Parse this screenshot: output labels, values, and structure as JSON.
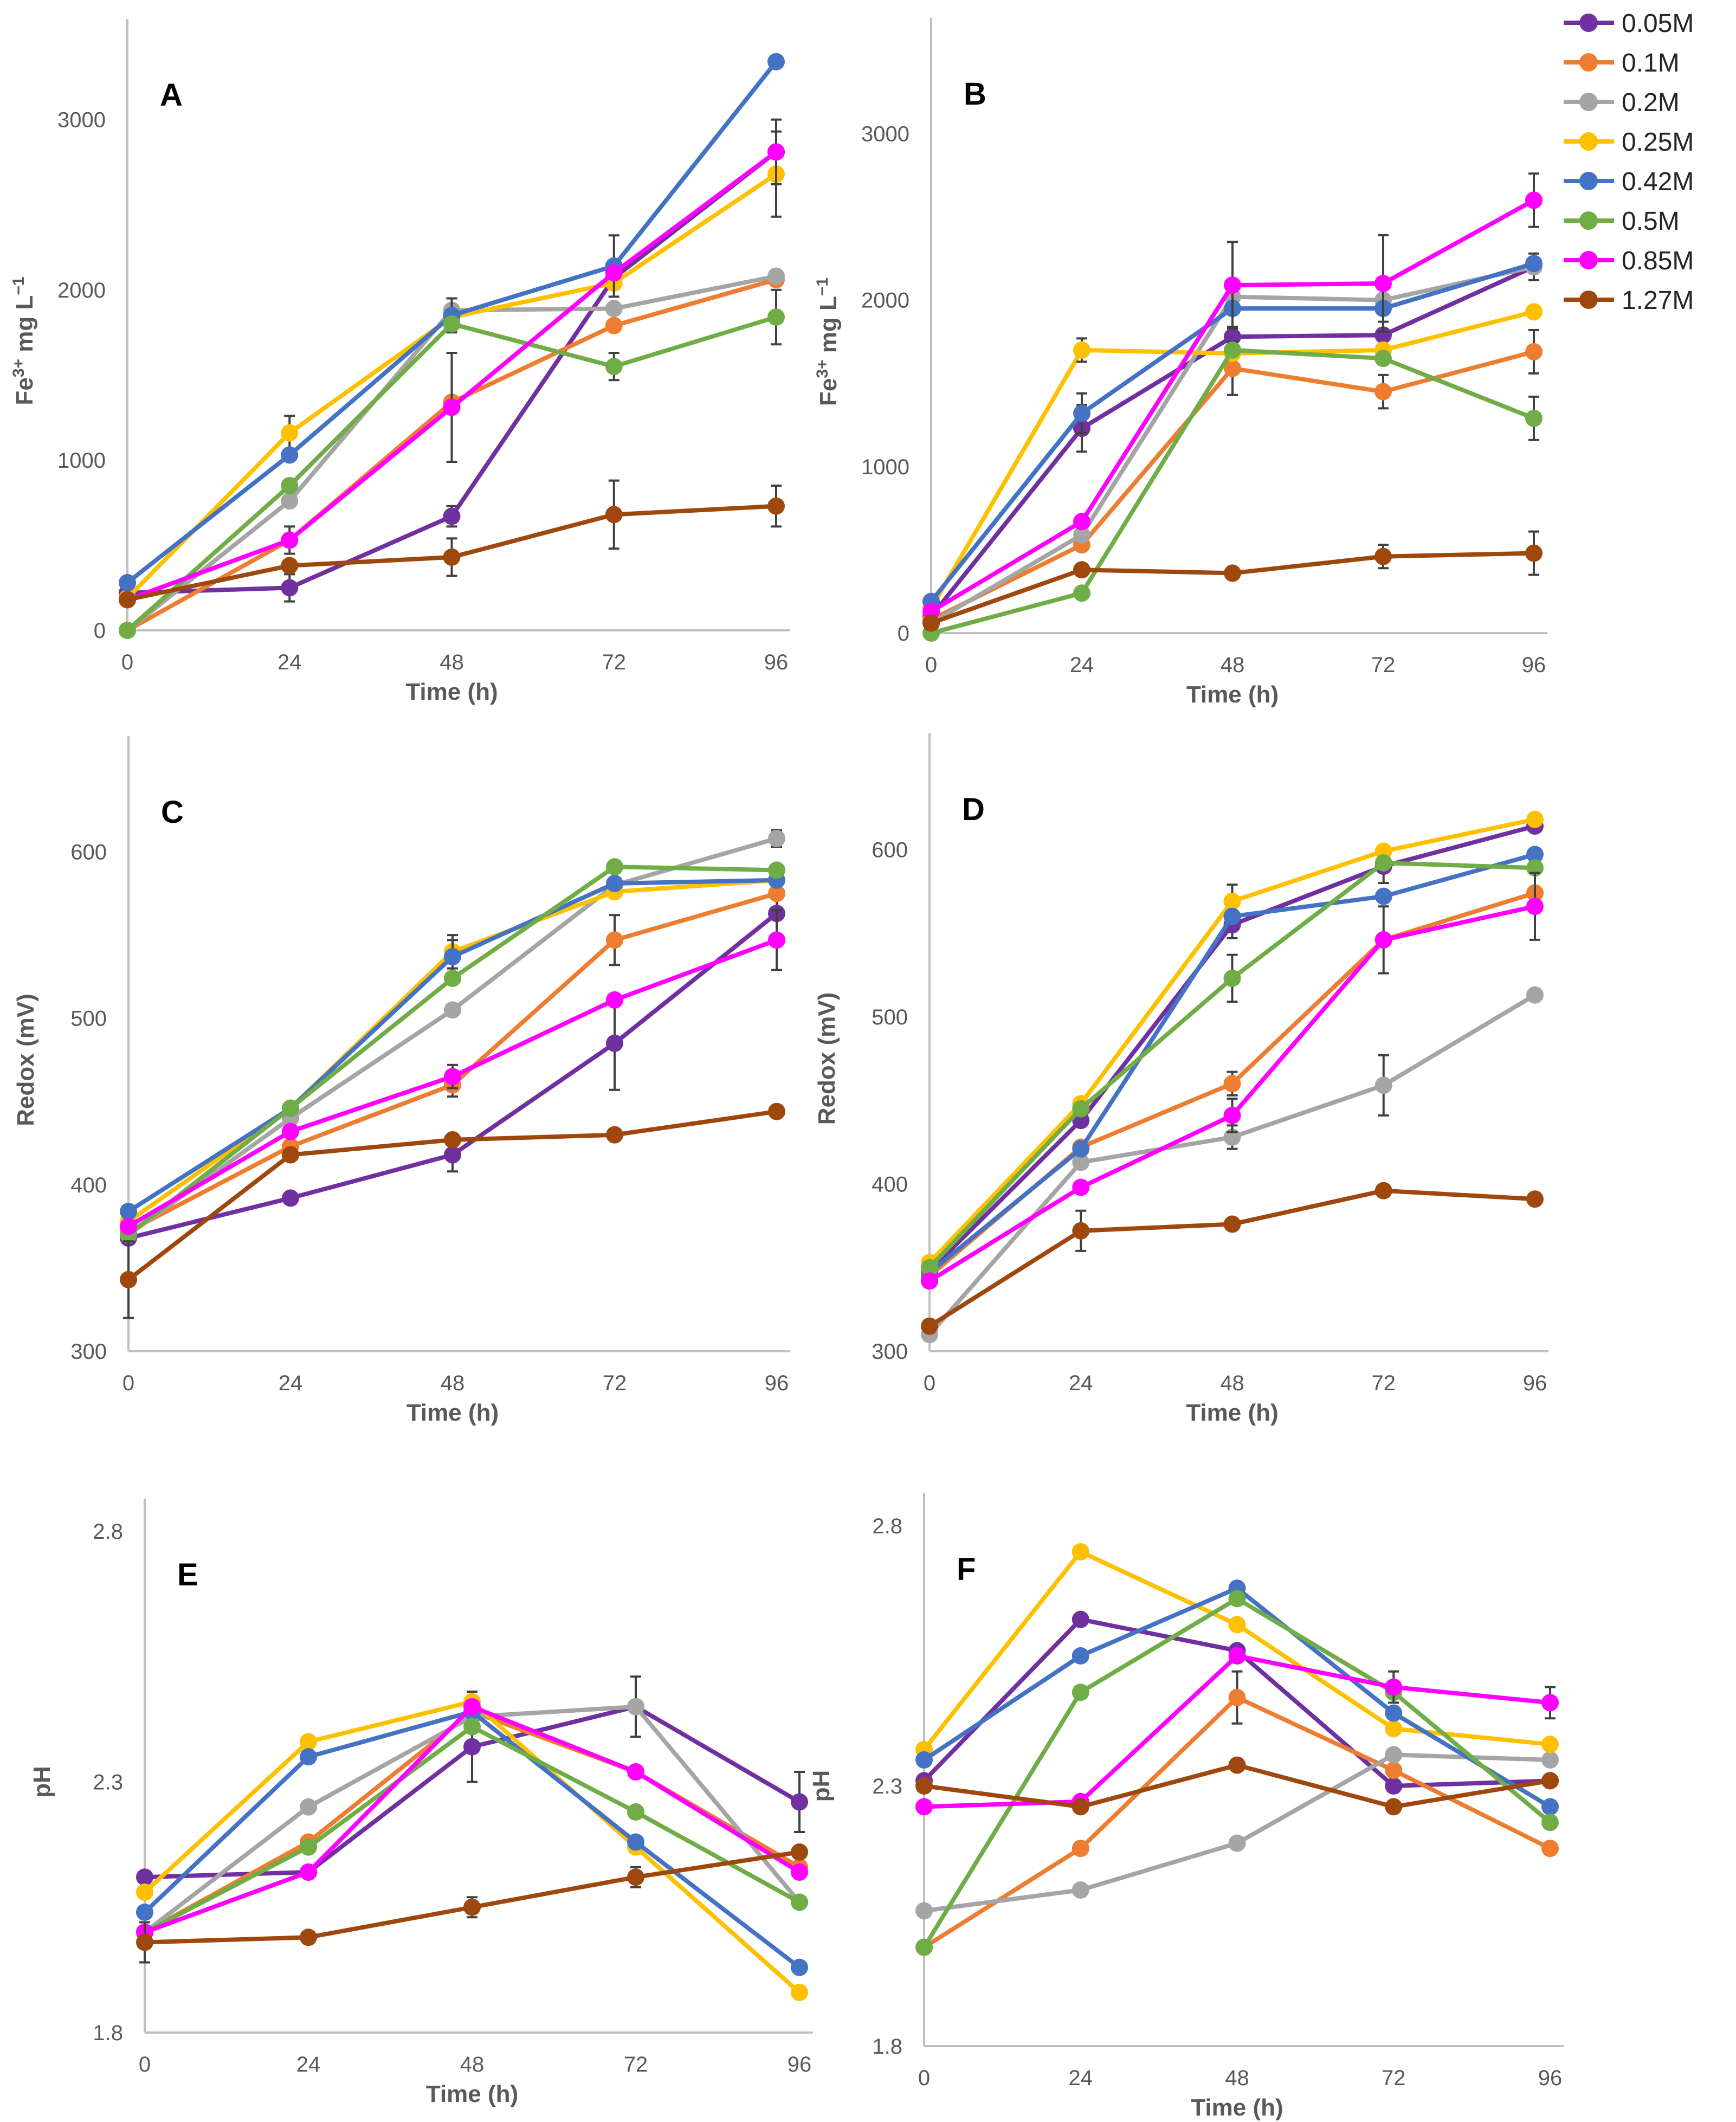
{
  "figure": {
    "series_colors": {
      "0.05M": "#7030A0",
      "0.1M": "#ED7D31",
      "0.2M": "#A5A5A5",
      "0.25M": "#FFC000",
      "0.42M": "#4472C4",
      "0.5M": "#70AD47",
      "0.85M": "#FF00FF",
      "1.27M": "#9E480E"
    },
    "legend": [
      "0.05M",
      "0.1M",
      "0.2M",
      "0.25M",
      "0.42M",
      "0.5M",
      "0.85M",
      "1.27M"
    ]
  },
  "chart_data": [
    {
      "panel": "A",
      "type": "line",
      "title": "",
      "xlabel": "Time (h)",
      "ylabel": "Fe3+ mg L−1",
      "x": [
        0,
        24,
        48,
        72,
        96
      ],
      "xticks": [
        "0",
        "24",
        "48",
        "72",
        "96"
      ],
      "yticks": [
        "0",
        "1000",
        "2000",
        "3000"
      ],
      "ylim": [
        0,
        3400
      ],
      "series": [
        {
          "name": "0.05M",
          "values": [
            220,
            250,
            670,
            2070,
            2810
          ],
          "err": [
            0,
            80,
            60,
            0,
            0
          ]
        },
        {
          "name": "0.1M",
          "values": [
            0,
            530,
            1340,
            1790,
            2060
          ],
          "err": [
            0,
            0,
            0,
            0,
            0
          ]
        },
        {
          "name": "0.2M",
          "values": [
            0,
            760,
            1880,
            1890,
            2080
          ],
          "err": [
            0,
            0,
            0,
            0,
            0
          ]
        },
        {
          "name": "0.25M",
          "values": [
            190,
            1160,
            1840,
            2040,
            2680
          ],
          "err": [
            0,
            100,
            0,
            0,
            250
          ]
        },
        {
          "name": "0.42M",
          "values": [
            280,
            1030,
            1850,
            2140,
            3340
          ],
          "err": [
            0,
            0,
            100,
            180,
            0
          ]
        },
        {
          "name": "0.5M",
          "values": [
            0,
            850,
            1800,
            1550,
            1840
          ],
          "err": [
            0,
            0,
            0,
            80,
            160
          ]
        },
        {
          "name": "0.85M",
          "values": [
            180,
            530,
            1310,
            2100,
            2810
          ],
          "err": [
            0,
            80,
            320,
            0,
            190
          ]
        },
        {
          "name": "1.27M",
          "values": [
            180,
            380,
            430,
            680,
            730
          ],
          "err": [
            0,
            0,
            110,
            200,
            120
          ]
        }
      ]
    },
    {
      "panel": "B",
      "type": "line",
      "title": "",
      "xlabel": "Time (h)",
      "ylabel": "Fe3+ mg L−1",
      "x": [
        0,
        24,
        48,
        72,
        96
      ],
      "xticks": [
        "0",
        "24",
        "48",
        "72",
        "96"
      ],
      "yticks": [
        "0",
        "1000",
        "2000",
        "3000"
      ],
      "ylim": [
        0,
        3500
      ],
      "series": [
        {
          "name": "0.05M",
          "values": [
            100,
            1230,
            1780,
            1790,
            2200
          ],
          "err": [
            0,
            140,
            60,
            80,
            80
          ]
        },
        {
          "name": "0.1M",
          "values": [
            80,
            530,
            1590,
            1450,
            1690
          ],
          "err": [
            0,
            0,
            160,
            100,
            130
          ]
        },
        {
          "name": "0.2M",
          "values": [
            60,
            590,
            2020,
            2000,
            2200
          ],
          "err": [
            0,
            0,
            0,
            0,
            0
          ]
        },
        {
          "name": "0.25M",
          "values": [
            150,
            1700,
            1680,
            1700,
            1930
          ],
          "err": [
            0,
            70,
            0,
            0,
            0
          ]
        },
        {
          "name": "0.42M",
          "values": [
            190,
            1320,
            1950,
            1950,
            2220
          ],
          "err": [
            0,
            120,
            0,
            0,
            0
          ]
        },
        {
          "name": "0.5M",
          "values": [
            0,
            240,
            1700,
            1650,
            1290
          ],
          "err": [
            0,
            0,
            0,
            0,
            130
          ]
        },
        {
          "name": "0.85M",
          "values": [
            130,
            670,
            2090,
            2100,
            2600
          ],
          "err": [
            0,
            0,
            260,
            290,
            160
          ]
        },
        {
          "name": "1.27M",
          "values": [
            60,
            380,
            360,
            460,
            480
          ],
          "err": [
            0,
            0,
            0,
            70,
            130
          ]
        }
      ]
    },
    {
      "panel": "C",
      "type": "line",
      "title": "",
      "xlabel": "Time (h)",
      "ylabel": "Redox (mV)",
      "x": [
        0,
        24,
        48,
        72,
        96
      ],
      "xticks": [
        "0",
        "24",
        "48",
        "72",
        "96"
      ],
      "yticks": [
        "300",
        "400",
        "500",
        "600"
      ],
      "ylim": [
        300,
        650
      ],
      "series": [
        {
          "name": "0.05M",
          "values": [
            368,
            392,
            418,
            485,
            563
          ],
          "err": [
            0,
            0,
            10,
            28,
            14
          ]
        },
        {
          "name": "0.1M",
          "values": [
            372,
            423,
            460,
            547,
            575
          ],
          "err": [
            0,
            0,
            7,
            15,
            0
          ]
        },
        {
          "name": "0.2M",
          "values": [
            370,
            440,
            505,
            580,
            608
          ],
          "err": [
            0,
            0,
            0,
            0,
            5
          ]
        },
        {
          "name": "0.25M",
          "values": [
            378,
            446,
            540,
            576,
            583
          ],
          "err": [
            0,
            0,
            10,
            0,
            0
          ]
        },
        {
          "name": "0.42M",
          "values": [
            384,
            446,
            537,
            581,
            583
          ],
          "err": [
            0,
            0,
            10,
            0,
            0
          ]
        },
        {
          "name": "0.5M",
          "values": [
            370,
            446,
            524,
            591,
            589
          ],
          "err": [
            0,
            0,
            0,
            0,
            0
          ]
        },
        {
          "name": "0.85M",
          "values": [
            375,
            432,
            465,
            511,
            547
          ],
          "err": [
            0,
            0,
            7,
            0,
            18
          ]
        },
        {
          "name": "1.27M",
          "values": [
            343,
            418,
            427,
            430,
            444
          ],
          "err": [
            23,
            0,
            0,
            0,
            0
          ]
        }
      ]
    },
    {
      "panel": "D",
      "type": "line",
      "title": "",
      "xlabel": "Time (h)",
      "ylabel": "Redox (mV)",
      "x": [
        0,
        24,
        48,
        72,
        96
      ],
      "xticks": [
        "0",
        "24",
        "48",
        "72",
        "96"
      ],
      "yticks": [
        "300",
        "400",
        "500",
        "600"
      ],
      "ylim": [
        300,
        650
      ],
      "series": [
        {
          "name": "0.05M",
          "values": [
            348,
            438,
            555,
            590,
            614
          ],
          "err": [
            0,
            0,
            8,
            10,
            0
          ]
        },
        {
          "name": "0.1M",
          "values": [
            345,
            422,
            460,
            546,
            574
          ],
          "err": [
            0,
            0,
            7,
            0,
            0
          ]
        },
        {
          "name": "0.2M",
          "values": [
            310,
            413,
            428,
            459,
            513
          ],
          "err": [
            0,
            0,
            7,
            18,
            0
          ]
        },
        {
          "name": "0.25M",
          "values": [
            353,
            448,
            569,
            599,
            618
          ],
          "err": [
            0,
            0,
            10,
            0,
            0
          ]
        },
        {
          "name": "0.42M",
          "values": [
            347,
            421,
            560,
            572,
            597
          ],
          "err": [
            0,
            0,
            0,
            0,
            0
          ]
        },
        {
          "name": "0.5M",
          "values": [
            350,
            445,
            523,
            592,
            589
          ],
          "err": [
            0,
            0,
            14,
            0,
            0
          ]
        },
        {
          "name": "0.85M",
          "values": [
            342,
            398,
            441,
            546,
            566
          ],
          "err": [
            0,
            0,
            10,
            20,
            20
          ]
        },
        {
          "name": "1.27M",
          "values": [
            315,
            372,
            376,
            396,
            391
          ],
          "err": [
            0,
            12,
            0,
            0,
            0
          ]
        }
      ]
    },
    {
      "panel": "E",
      "type": "line",
      "title": "",
      "xlabel": "Time (h)",
      "ylabel": "pH",
      "x": [
        0,
        24,
        48,
        72,
        96
      ],
      "xticks": [
        "0",
        "24",
        "48",
        "72",
        "96"
      ],
      "yticks": [
        "1.8",
        "2.3",
        "2.8"
      ],
      "ylim": [
        1.8,
        2.8
      ],
      "series": [
        {
          "name": "0.05M",
          "values": [
            2.11,
            2.12,
            2.37,
            2.45,
            2.26
          ],
          "err": [
            0,
            0,
            0.07,
            0,
            0.06
          ]
        },
        {
          "name": "0.1M",
          "values": [
            2.0,
            2.18,
            2.44,
            2.32,
            2.13
          ],
          "err": [
            0,
            0,
            0,
            0,
            0
          ]
        },
        {
          "name": "0.2M",
          "values": [
            2.0,
            2.25,
            2.43,
            2.45,
            2.06
          ],
          "err": [
            0,
            0,
            0,
            0.06,
            0
          ]
        },
        {
          "name": "0.25M",
          "values": [
            2.08,
            2.38,
            2.46,
            2.17,
            1.88
          ],
          "err": [
            0,
            0,
            0.02,
            0,
            0
          ]
        },
        {
          "name": "0.42M",
          "values": [
            2.04,
            2.35,
            2.44,
            2.18,
            1.93
          ],
          "err": [
            0,
            0,
            0,
            0,
            0
          ]
        },
        {
          "name": "0.5M",
          "values": [
            2.0,
            2.17,
            2.41,
            2.24,
            2.06
          ],
          "err": [
            0,
            0,
            0,
            0,
            0
          ]
        },
        {
          "name": "0.85M",
          "values": [
            2.0,
            2.12,
            2.45,
            2.32,
            2.12
          ],
          "err": [
            0,
            0,
            0,
            0,
            0
          ]
        },
        {
          "name": "1.27M",
          "values": [
            1.98,
            1.99,
            2.05,
            2.11,
            2.16
          ],
          "err": [
            0.04,
            0,
            0.02,
            0.02,
            0
          ]
        }
      ]
    },
    {
      "panel": "F",
      "type": "line",
      "title": "",
      "xlabel": "Time (h)",
      "ylabel": "pH",
      "x": [
        0,
        24,
        48,
        72,
        96
      ],
      "xticks": [
        "0",
        "24",
        "48",
        "72",
        "96"
      ],
      "yticks": [
        "1.8",
        "2.3",
        "2.8"
      ],
      "ylim": [
        1.8,
        2.8
      ],
      "series": [
        {
          "name": "0.05M",
          "values": [
            2.31,
            2.62,
            2.56,
            2.3,
            2.31
          ],
          "err": [
            0,
            0,
            0,
            0,
            0
          ]
        },
        {
          "name": "0.1M",
          "values": [
            1.99,
            2.18,
            2.47,
            2.33,
            2.18
          ],
          "err": [
            0,
            0,
            0.05,
            0,
            0
          ]
        },
        {
          "name": "0.2M",
          "values": [
            2.06,
            2.1,
            2.19,
            2.36,
            2.35
          ],
          "err": [
            0,
            0,
            0,
            0,
            0
          ]
        },
        {
          "name": "0.25M",
          "values": [
            2.37,
            2.75,
            2.61,
            2.41,
            2.38
          ],
          "err": [
            0,
            0,
            0,
            0,
            0
          ]
        },
        {
          "name": "0.42M",
          "values": [
            2.35,
            2.55,
            2.68,
            2.44,
            2.26
          ],
          "err": [
            0,
            0,
            0,
            0,
            0
          ]
        },
        {
          "name": "0.5M",
          "values": [
            1.99,
            2.48,
            2.66,
            2.48,
            2.23
          ],
          "err": [
            0,
            0,
            0,
            0,
            0
          ]
        },
        {
          "name": "0.85M",
          "values": [
            2.26,
            2.27,
            2.55,
            2.49,
            2.46
          ],
          "err": [
            0,
            0,
            0,
            0.03,
            0.03
          ]
        },
        {
          "name": "1.27M",
          "values": [
            2.3,
            2.26,
            2.34,
            2.26,
            2.31
          ],
          "err": [
            0,
            0,
            0,
            0,
            0
          ]
        }
      ]
    }
  ]
}
